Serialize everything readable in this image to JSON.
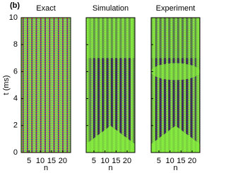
{
  "chart_data": [
    {
      "type": "heatmap",
      "panel_label": "(b)",
      "title": "Exact",
      "xlabel": "n",
      "ylabel": "t (ms)",
      "xlim": [
        1.5,
        23.5
      ],
      "xticks": [
        5,
        10,
        15,
        20
      ],
      "ylim": [
        0,
        10
      ],
      "yticks": [
        0,
        2,
        4,
        6,
        8,
        10
      ]
    },
    {
      "type": "heatmap",
      "title": "Simulation",
      "xlabel": "n",
      "xlim": [
        1.5,
        23.5
      ],
      "xticks": [
        5,
        10,
        15,
        20
      ],
      "ylim": [
        0,
        10
      ],
      "yticks": [
        0,
        2,
        4,
        6,
        8,
        10
      ]
    },
    {
      "type": "heatmap",
      "title": "Experiment",
      "xlabel": "n",
      "xlim": [
        1.5,
        23.5
      ],
      "xticks": [
        5,
        10,
        15,
        20
      ],
      "ylim": [
        0,
        10
      ],
      "yticks": [
        0,
        2,
        4,
        6,
        8,
        10
      ]
    }
  ]
}
